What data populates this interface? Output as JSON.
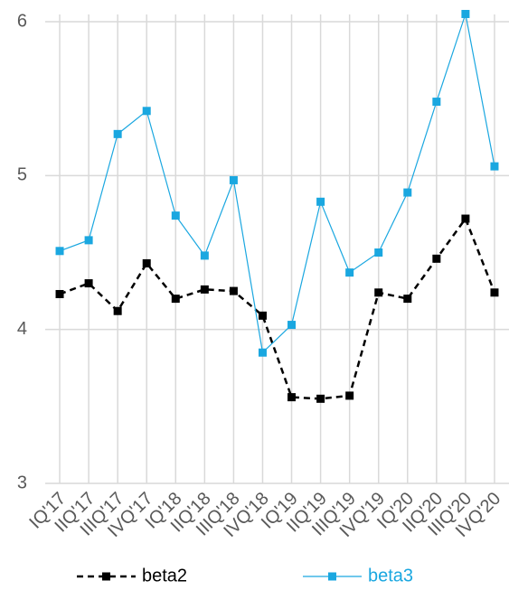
{
  "chart_data": {
    "type": "line",
    "categories": [
      "IQ'17",
      "IIQ'17",
      "IIIQ'17",
      "IVQ'17",
      "IQ'18",
      "IIQ'18",
      "IIIQ'18",
      "IVQ'18",
      "IQ'19",
      "IIQ'19",
      "IIIQ'19",
      "IVQ'19",
      "IQ'20",
      "IIQ'20",
      "IIIQ'20",
      "IVQ'20"
    ],
    "series": [
      {
        "name": "beta2",
        "color": "#000000",
        "dashed": true,
        "values": [
          4.23,
          4.3,
          4.12,
          4.43,
          4.2,
          4.26,
          4.25,
          4.09,
          3.56,
          3.55,
          3.57,
          4.24,
          4.2,
          4.46,
          4.72,
          4.24
        ]
      },
      {
        "name": "beta3",
        "color": "#1aa7e0",
        "dashed": false,
        "values": [
          4.51,
          4.58,
          5.27,
          5.42,
          4.74,
          4.48,
          4.97,
          3.85,
          4.03,
          4.83,
          4.37,
          4.5,
          4.89,
          5.48,
          6.05,
          5.06
        ]
      }
    ],
    "ylim": [
      3,
      6
    ],
    "yticks": [
      3,
      4,
      5,
      6
    ],
    "grid": true,
    "legend": "bottom"
  }
}
